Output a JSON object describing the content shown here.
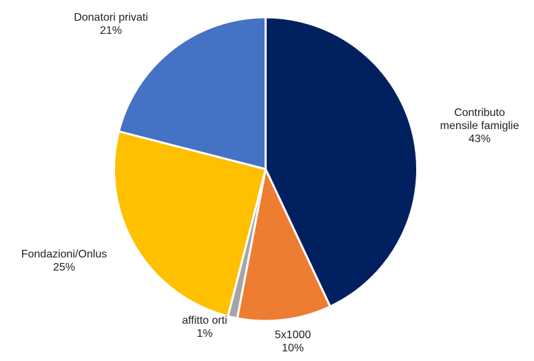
{
  "chart_data": {
    "type": "pie",
    "title": "",
    "start_angle_deg": 0,
    "direction": "clockwise",
    "slices": [
      {
        "label_lines": [
          "Contributo",
          "mensile famiglie"
        ],
        "percent_label": "43%",
        "value": 43,
        "color": "#002060"
      },
      {
        "label_lines": [
          "5x1000"
        ],
        "percent_label": "10%",
        "value": 10,
        "color": "#ED7D31"
      },
      {
        "label_lines": [
          "affitto orti"
        ],
        "percent_label": "1%",
        "value": 1,
        "color": "#A5A5A5"
      },
      {
        "label_lines": [
          "Fondazioni/Onlus"
        ],
        "percent_label": "25%",
        "value": 25,
        "color": "#FFC000"
      },
      {
        "label_lines": [
          "Donatori privati"
        ],
        "percent_label": "21%",
        "value": 21,
        "color": "#4472C4"
      }
    ]
  }
}
